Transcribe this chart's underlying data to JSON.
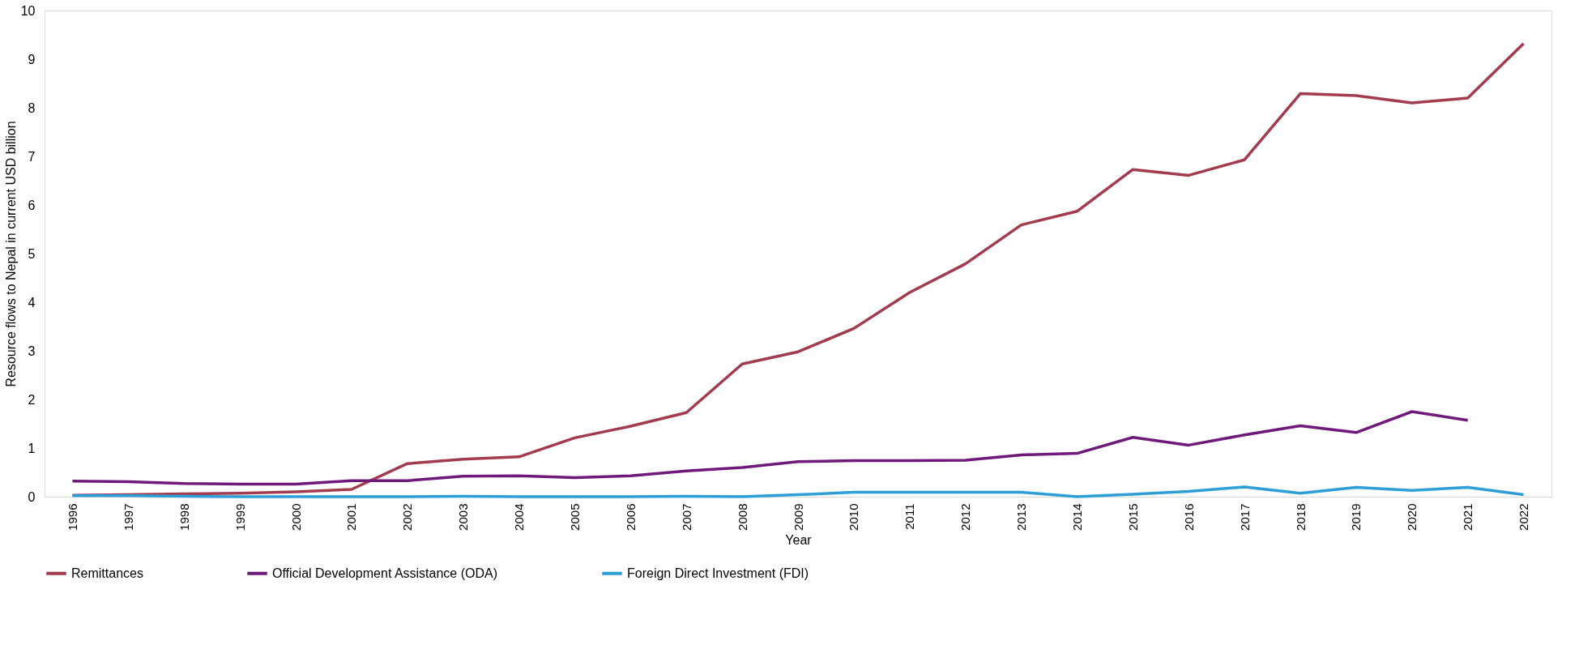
{
  "chart_data": {
    "type": "line",
    "xlabel": "Year",
    "ylabel": "Resource flows to Nepal  in current USD billion",
    "categories": [
      "1996",
      "1997",
      "1998",
      "1999",
      "2000",
      "2001",
      "2002",
      "2003",
      "2004",
      "2005",
      "2006",
      "2007",
      "2008",
      "2009",
      "2010",
      "2011",
      "2012",
      "2013",
      "2014",
      "2015",
      "2016",
      "2017",
      "2018",
      "2019",
      "2020",
      "2021",
      "2022"
    ],
    "series": [
      {
        "name": "Remittances",
        "color": "#a33b4f",
        "values": [
          0.03,
          0.04,
          0.06,
          0.07,
          0.1,
          0.15,
          0.68,
          0.77,
          0.82,
          1.21,
          1.45,
          1.73,
          2.73,
          2.98,
          3.46,
          4.2,
          4.79,
          5.59,
          5.87,
          6.73,
          6.61,
          6.93,
          8.29,
          8.25,
          8.1,
          8.2,
          9.32
        ]
      },
      {
        "name": "Official Development Assistance (ODA)",
        "color": "#6f1a7a",
        "values": [
          0.32,
          0.31,
          0.27,
          0.26,
          0.26,
          0.33,
          0.33,
          0.42,
          0.43,
          0.39,
          0.43,
          0.53,
          0.6,
          0.72,
          0.74,
          0.74,
          0.75,
          0.86,
          0.89,
          1.22,
          1.06,
          1.27,
          1.46,
          1.32,
          1.75,
          1.57,
          null
        ]
      },
      {
        "name": "Foreign Direct Investment (FDI)",
        "color": "#2e9fd6",
        "values": [
          0.02,
          0.02,
          0.01,
          0.0,
          0.0,
          0.0,
          0.0,
          0.01,
          0.0,
          0.0,
          0.0,
          0.01,
          0.0,
          0.04,
          0.09,
          0.09,
          0.09,
          0.09,
          0.0,
          0.05,
          0.11,
          0.2,
          0.07,
          0.19,
          0.13,
          0.19,
          0.04
        ]
      }
    ],
    "ylim": [
      0,
      10
    ],
    "yticks": [
      0,
      1,
      2,
      3,
      4,
      5,
      6,
      7,
      8,
      9,
      10
    ],
    "grid": false,
    "legend": "bottom",
    "marker": "none",
    "line_style": "solid"
  }
}
